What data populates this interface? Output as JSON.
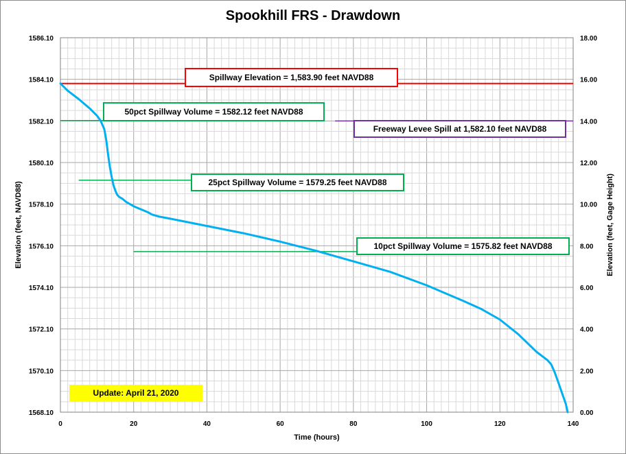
{
  "chart_data": {
    "type": "line",
    "title": "Spookhill FRS - Drawdown",
    "xlabel": "Time (hours)",
    "ylabel": "Elevation  (feet, NAVD88)",
    "y2label": "Elevation  (feet, Gage  Height)",
    "xlim": [
      0,
      140
    ],
    "ylim": [
      1568.1,
      1586.1
    ],
    "y2lim": [
      0,
      18
    ],
    "x_ticks": [
      0,
      20,
      40,
      60,
      80,
      100,
      120,
      140
    ],
    "y_ticks": [
      "1568.10",
      "1570.10",
      "1572.10",
      "1574.10",
      "1576.10",
      "1578.10",
      "1580.10",
      "1582.10",
      "1584.10",
      "1586.10"
    ],
    "y2_ticks": [
      "0.00",
      "2.00",
      "4.00",
      "6.00",
      "8.00",
      "10.00",
      "12.00",
      "14.00",
      "16.00",
      "18.00"
    ],
    "grid": true,
    "series": [
      {
        "color": "#00b0f0",
        "x": [
          0,
          2,
          5,
          8,
          10,
          11,
          12,
          12.5,
          13,
          13.5,
          14,
          14.5,
          15,
          15.5,
          16,
          17,
          18,
          20,
          22,
          24,
          25,
          27,
          30,
          40,
          50,
          60,
          70,
          80,
          90,
          100,
          110,
          115,
          120,
          125,
          130,
          133,
          134,
          135,
          136,
          137,
          138,
          138.5
        ],
        "y": [
          1583.9,
          1583.55,
          1583.15,
          1582.7,
          1582.35,
          1582.1,
          1581.7,
          1581.2,
          1580.5,
          1579.9,
          1579.4,
          1579.0,
          1578.75,
          1578.55,
          1578.45,
          1578.35,
          1578.2,
          1578.0,
          1577.85,
          1577.7,
          1577.6,
          1577.5,
          1577.4,
          1577.05,
          1576.7,
          1576.3,
          1575.85,
          1575.35,
          1574.85,
          1574.2,
          1573.45,
          1573.05,
          1572.55,
          1571.85,
          1571.0,
          1570.6,
          1570.4,
          1570.0,
          1569.5,
          1569.0,
          1568.5,
          1568.1
        ]
      }
    ],
    "reference_lines": [
      {
        "label": "Spillway Elevation = 1,583.90  feet NAVD88",
        "y": 1583.9,
        "x_start": 0,
        "x_end": 140,
        "color": "#ff0000"
      },
      {
        "label": "50pct Spillway Volume = 1582.12  feet NAVD88",
        "y": 1582.12,
        "x_start": 0,
        "x_end": 70,
        "color": "#00b050"
      },
      {
        "label": "Freeway Levee Spill at 1,582.10  feet NAVD88",
        "y": 1582.1,
        "x_start": 75,
        "x_end": 140,
        "color": "#7030a0"
      },
      {
        "label": "25pct Spillway Volume = 1579.25  feet NAVD88",
        "y": 1579.25,
        "x_start": 5,
        "x_end": 37,
        "color": "#00b050"
      },
      {
        "label": "10pct Spillway Volume = 1575.82  feet NAVD88",
        "y": 1575.82,
        "x_start": 20,
        "x_end": 81,
        "color": "#00b050"
      }
    ]
  },
  "update_note": "Update: April 21, 2020"
}
